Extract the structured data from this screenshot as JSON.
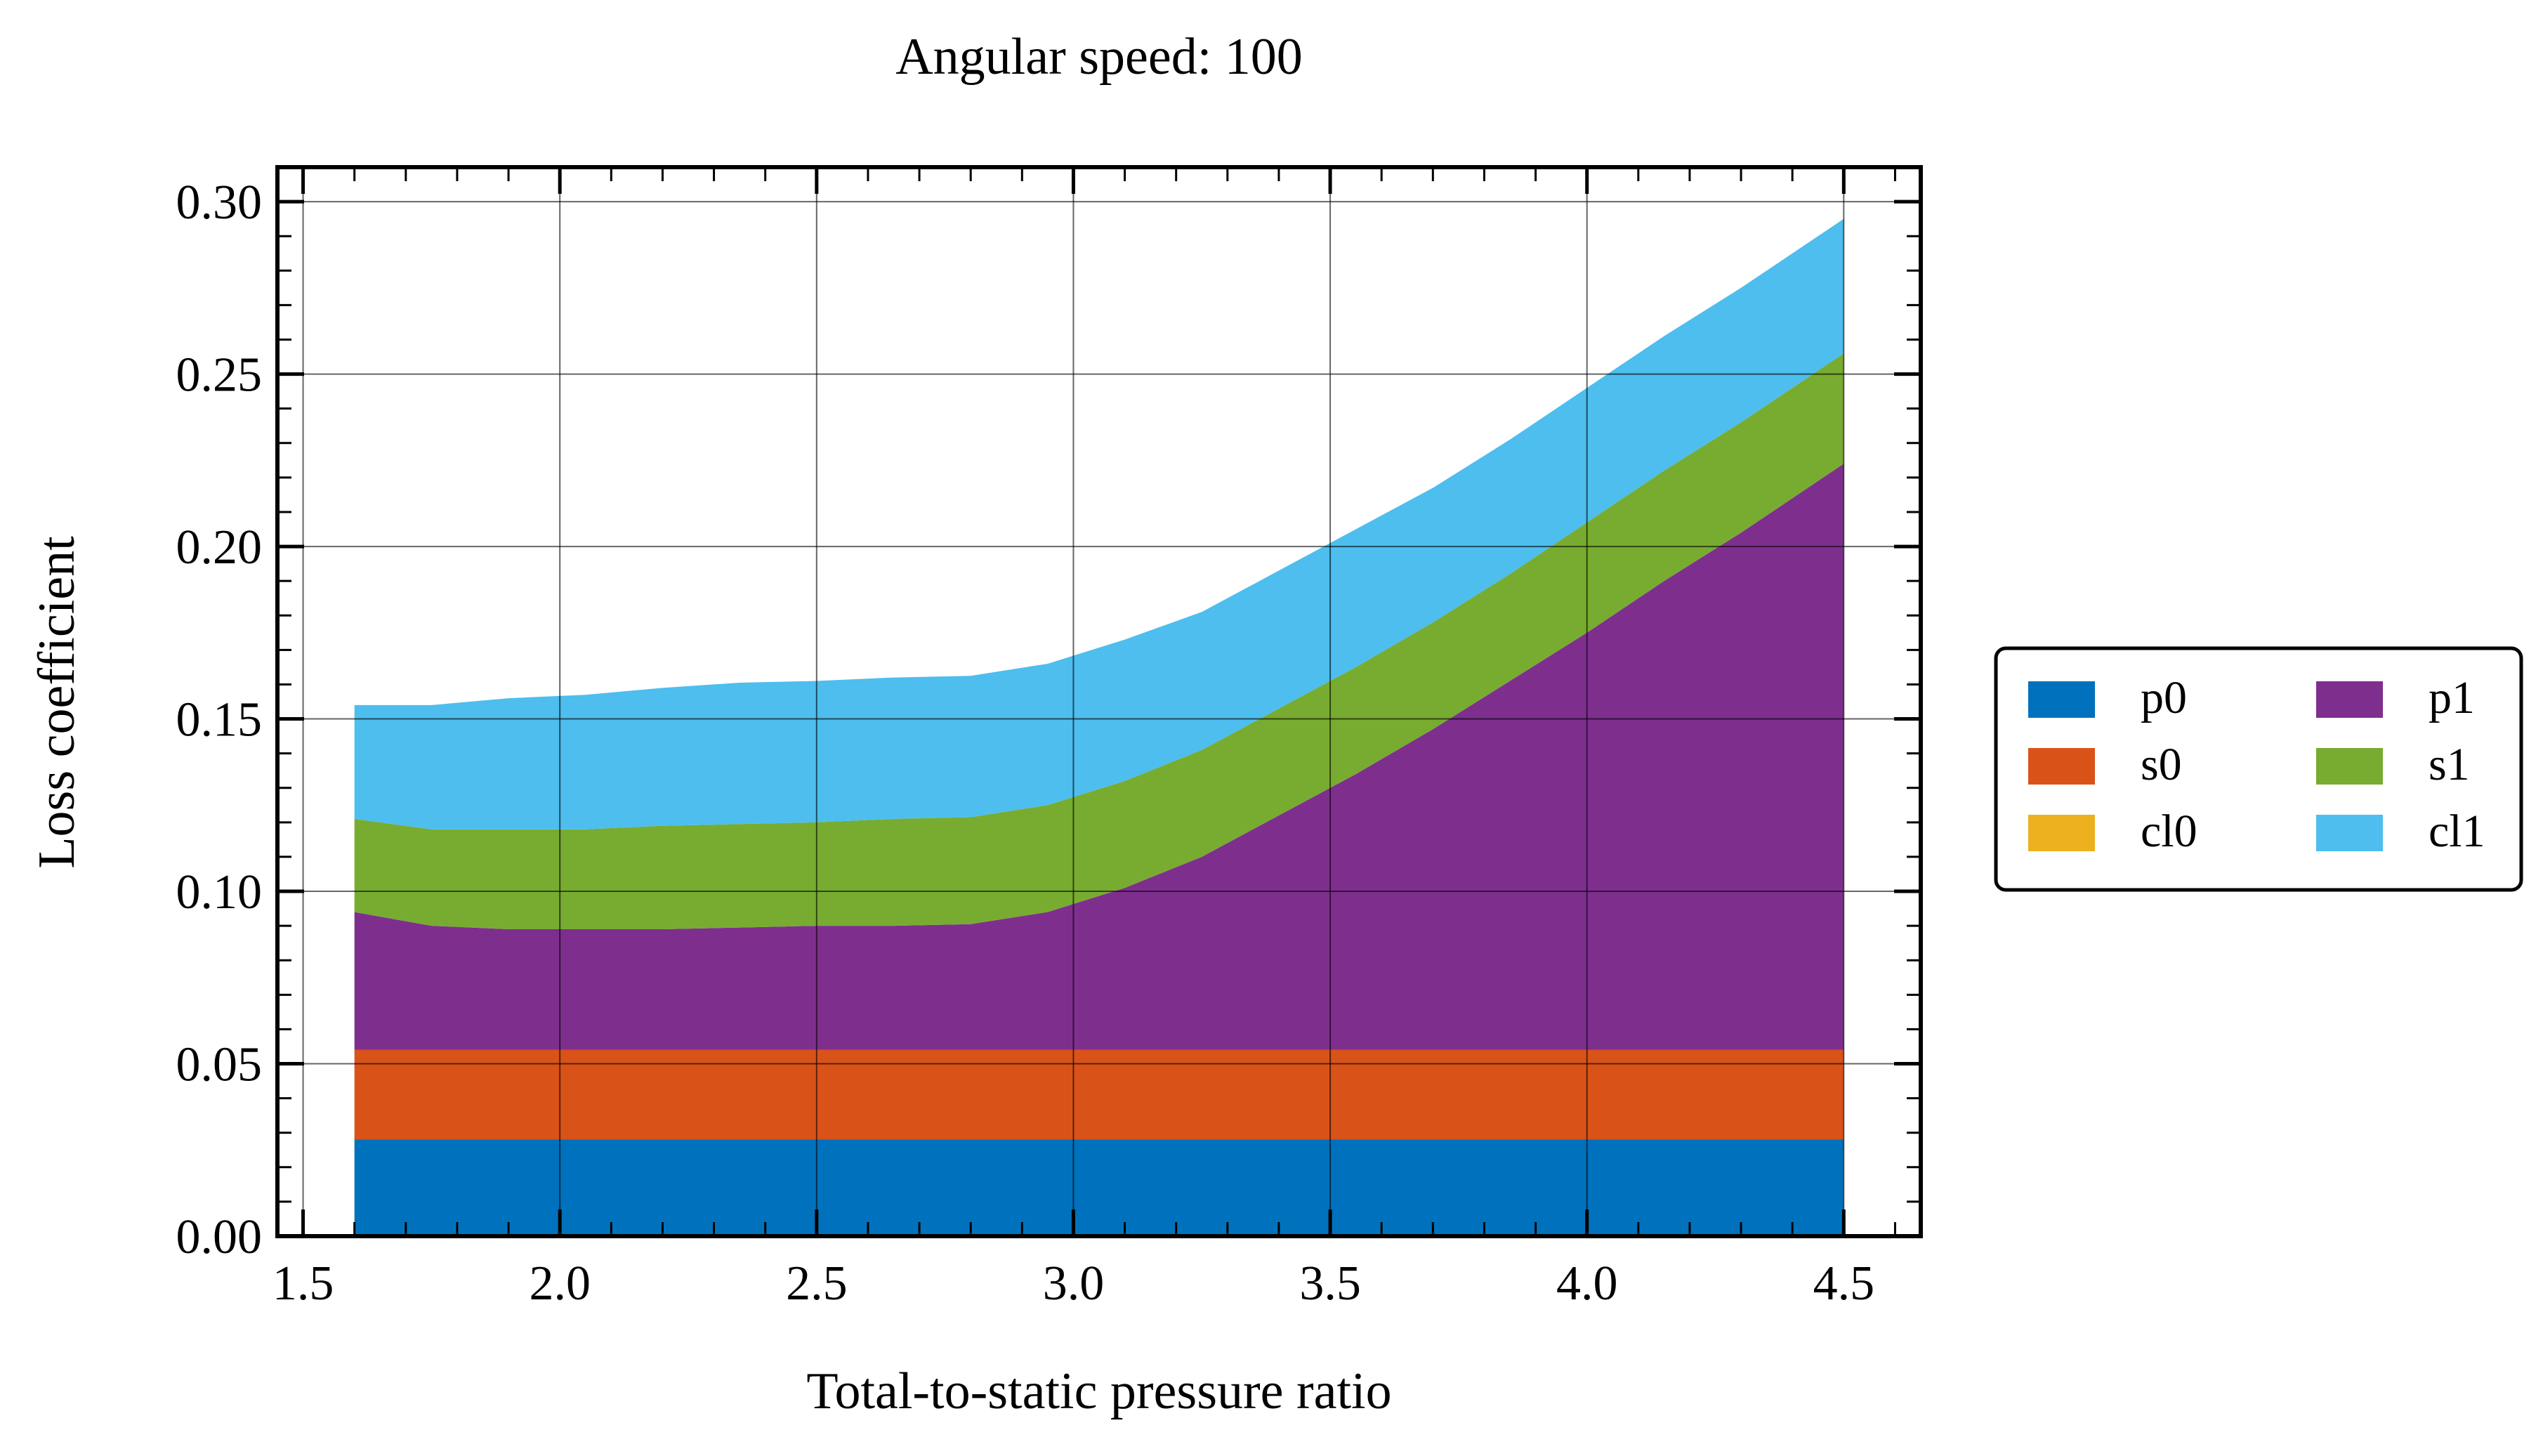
{
  "chart_data": {
    "type": "area",
    "stacked": true,
    "title": "Angular speed: 100",
    "xlabel": "Total-to-static pressure ratio",
    "ylabel": "Loss coefficient",
    "xlim": [
      1.45,
      4.65
    ],
    "ylim": [
      0.0,
      0.31
    ],
    "xticks": [
      "1.5",
      "2.0",
      "2.5",
      "3.0",
      "3.5",
      "4.0",
      "4.5"
    ],
    "yticks": [
      "0.00",
      "0.05",
      "0.10",
      "0.15",
      "0.20",
      "0.25",
      "0.30"
    ],
    "grid": true,
    "legend_position": "outside-right",
    "x": [
      1.6,
      1.75,
      1.9,
      2.05,
      2.2,
      2.35,
      2.5,
      2.65,
      2.8,
      2.95,
      3.1,
      3.25,
      3.4,
      3.55,
      3.7,
      3.85,
      4.0,
      4.15,
      4.3,
      4.5
    ],
    "series": [
      {
        "name": "p0",
        "color": "#0072bd",
        "values": [
          0.028,
          0.028,
          0.028,
          0.028,
          0.028,
          0.028,
          0.028,
          0.028,
          0.028,
          0.028,
          0.028,
          0.028,
          0.028,
          0.028,
          0.028,
          0.028,
          0.028,
          0.028,
          0.028,
          0.028
        ]
      },
      {
        "name": "s0",
        "color": "#d95319",
        "values": [
          0.026,
          0.026,
          0.026,
          0.026,
          0.026,
          0.026,
          0.026,
          0.026,
          0.026,
          0.026,
          0.026,
          0.026,
          0.026,
          0.026,
          0.026,
          0.026,
          0.026,
          0.026,
          0.026,
          0.026
        ]
      },
      {
        "name": "cl0",
        "color": "#edb120",
        "values": [
          0,
          0,
          0,
          0,
          0,
          0,
          0,
          0,
          0,
          0,
          0,
          0,
          0,
          0,
          0,
          0,
          0,
          0,
          0,
          0
        ]
      },
      {
        "name": "p1",
        "color": "#7e2f8e",
        "values": [
          0.04,
          0.036,
          0.035,
          0.035,
          0.035,
          0.0355,
          0.036,
          0.036,
          0.0365,
          0.04,
          0.047,
          0.056,
          0.068,
          0.08,
          0.093,
          0.107,
          0.121,
          0.136,
          0.15,
          0.17
        ]
      },
      {
        "name": "s1",
        "color": "#77ac30",
        "values": [
          0.027,
          0.028,
          0.029,
          0.029,
          0.03,
          0.03,
          0.03,
          0.031,
          0.031,
          0.031,
          0.031,
          0.031,
          0.031,
          0.031,
          0.031,
          0.031,
          0.032,
          0.032,
          0.032,
          0.032
        ]
      },
      {
        "name": "cl1",
        "color": "#4dbeee",
        "values": [
          0.033,
          0.036,
          0.038,
          0.039,
          0.04,
          0.041,
          0.041,
          0.041,
          0.041,
          0.041,
          0.041,
          0.04,
          0.04,
          0.04,
          0.039,
          0.039,
          0.039,
          0.039,
          0.039,
          0.039
        ]
      }
    ]
  }
}
